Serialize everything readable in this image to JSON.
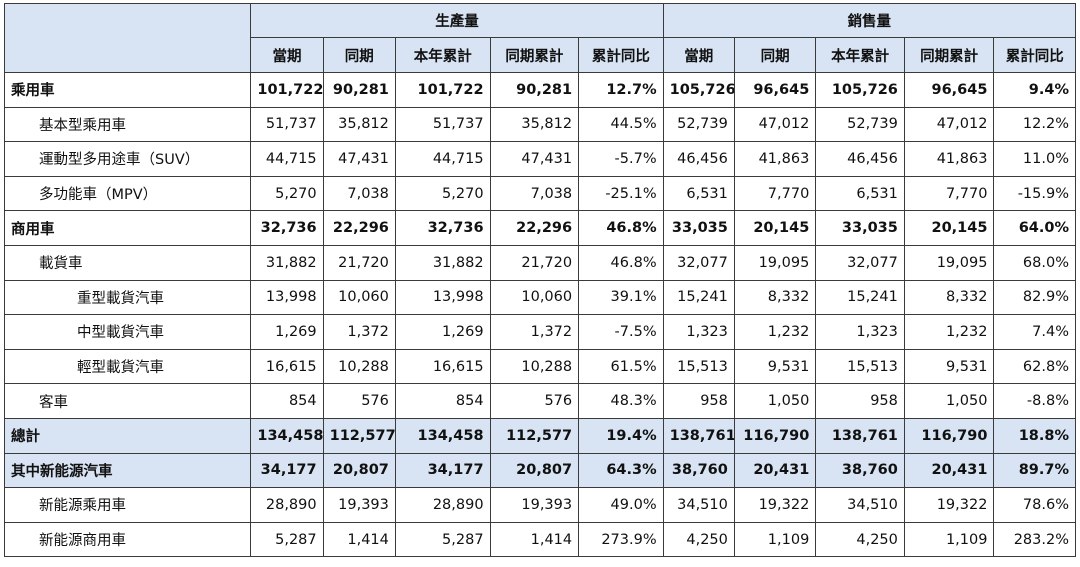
{
  "groups": [
    "生產量",
    "銷售量"
  ],
  "sub_headers": [
    "當期",
    "同期",
    "本年累計",
    "同期累計",
    "累計同比",
    "當期",
    "同期",
    "本年累計",
    "同期累計",
    "累計同比"
  ],
  "rows": [
    {
      "label": "乘用車",
      "values": [
        "101,722",
        "90,281",
        "101,722",
        "90,281",
        "12.7%",
        "105,726",
        "96,645",
        "105,726",
        "96,645",
        "9.4%"
      ]
    },
    {
      "label": "基本型乘用車",
      "values": [
        "51,737",
        "35,812",
        "51,737",
        "35,812",
        "44.5%",
        "52,739",
        "47,012",
        "52,739",
        "47,012",
        "12.2%"
      ]
    },
    {
      "label": "運動型多用途車（SUV）",
      "values": [
        "44,715",
        "47,431",
        "44,715",
        "47,431",
        "-5.7%",
        "46,456",
        "41,863",
        "46,456",
        "41,863",
        "11.0%"
      ]
    },
    {
      "label": "多功能車（MPV）",
      "values": [
        "5,270",
        "7,038",
        "5,270",
        "7,038",
        "-25.1%",
        "6,531",
        "7,770",
        "6,531",
        "7,770",
        "-15.9%"
      ]
    },
    {
      "label": "商用車",
      "values": [
        "32,736",
        "22,296",
        "32,736",
        "22,296",
        "46.8%",
        "33,035",
        "20,145",
        "33,035",
        "20,145",
        "64.0%"
      ]
    },
    {
      "label": "載貨車",
      "values": [
        "31,882",
        "21,720",
        "31,882",
        "21,720",
        "46.8%",
        "32,077",
        "19,095",
        "32,077",
        "19,095",
        "68.0%"
      ]
    },
    {
      "label": "重型載貨汽車",
      "values": [
        "13,998",
        "10,060",
        "13,998",
        "10,060",
        "39.1%",
        "15,241",
        "8,332",
        "15,241",
        "8,332",
        "82.9%"
      ]
    },
    {
      "label": "中型載貨汽車",
      "values": [
        "1,269",
        "1,372",
        "1,269",
        "1,372",
        "-7.5%",
        "1,323",
        "1,232",
        "1,323",
        "1,232",
        "7.4%"
      ]
    },
    {
      "label": "輕型載貨汽車",
      "values": [
        "16,615",
        "10,288",
        "16,615",
        "10,288",
        "61.5%",
        "15,513",
        "9,531",
        "15,513",
        "9,531",
        "62.8%"
      ]
    },
    {
      "label": "客車",
      "values": [
        "854",
        "576",
        "854",
        "576",
        "48.3%",
        "958",
        "1,050",
        "958",
        "1,050",
        "-8.8%"
      ]
    },
    {
      "label": "總計",
      "values": [
        "134,458",
        "112,577",
        "134,458",
        "112,577",
        "19.4%",
        "138,761",
        "116,790",
        "138,761",
        "116,790",
        "18.8%"
      ]
    },
    {
      "label": "其中新能源汽車",
      "values": [
        "34,177",
        "20,807",
        "34,177",
        "20,807",
        "64.3%",
        "38,760",
        "20,431",
        "38,760",
        "20,431",
        "89.7%"
      ]
    },
    {
      "label": "新能源乘用車",
      "values": [
        "28,890",
        "19,393",
        "28,890",
        "19,393",
        "49.0%",
        "34,510",
        "19,322",
        "34,510",
        "19,322",
        "78.6%"
      ]
    },
    {
      "label": "新能源商用車",
      "values": [
        "5,287",
        "1,414",
        "5,287",
        "1,414",
        "273.9%",
        "4,250",
        "1,109",
        "4,250",
        "1,109",
        "283.2%"
      ]
    }
  ]
}
